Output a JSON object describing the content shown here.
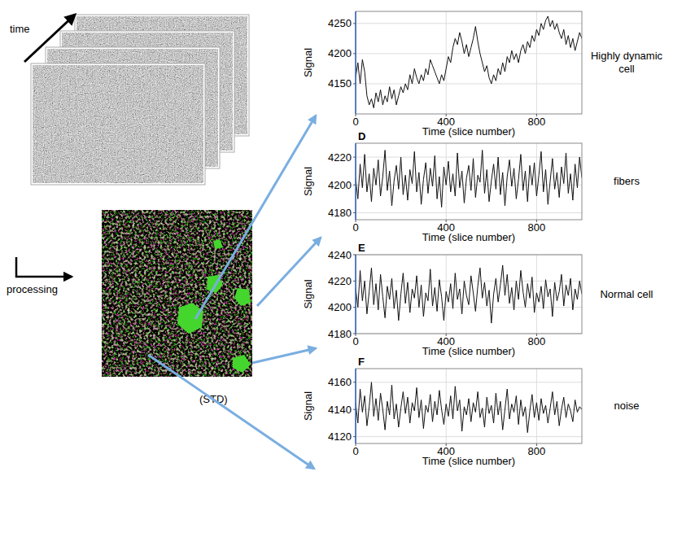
{
  "figure": {
    "time_label": "time",
    "processing_label": "processing",
    "std_label": "(STD)"
  },
  "chart_data": [
    {
      "type": "line",
      "annotation": "Highly dynamic cell",
      "x_label": "Time (slice number)",
      "y_label": "Signal",
      "xlim": [
        0,
        1000
      ],
      "ylim": [
        4100,
        4270
      ],
      "xticks": [
        0,
        400,
        800
      ],
      "yticks": [
        4150,
        4200,
        4250
      ],
      "grid": true,
      "color": "#111111",
      "x": [
        0,
        10,
        20,
        30,
        40,
        50,
        60,
        70,
        80,
        90,
        100,
        110,
        120,
        130,
        140,
        150,
        160,
        170,
        180,
        190,
        200,
        210,
        220,
        230,
        240,
        250,
        260,
        270,
        280,
        290,
        300,
        310,
        320,
        330,
        340,
        350,
        360,
        370,
        380,
        390,
        400,
        410,
        420,
        430,
        440,
        450,
        460,
        470,
        480,
        490,
        500,
        510,
        520,
        530,
        540,
        550,
        560,
        570,
        580,
        590,
        600,
        610,
        620,
        630,
        640,
        650,
        660,
        670,
        680,
        690,
        700,
        710,
        720,
        730,
        740,
        750,
        760,
        770,
        780,
        790,
        800,
        810,
        820,
        830,
        840,
        850,
        860,
        870,
        880,
        890,
        900,
        910,
        920,
        930,
        940,
        950,
        960,
        970,
        980,
        990,
        1000
      ],
      "values": [
        4160,
        4185,
        4150,
        4190,
        4170,
        4130,
        4115,
        4125,
        4110,
        4135,
        4120,
        4140,
        4115,
        4130,
        4120,
        4145,
        4125,
        4140,
        4115,
        4130,
        4145,
        4135,
        4150,
        4140,
        4165,
        4150,
        4175,
        4160,
        4150,
        4165,
        4155,
        4175,
        4165,
        4190,
        4180,
        4170,
        4160,
        4150,
        4165,
        4155,
        4175,
        4195,
        4185,
        4210,
        4225,
        4215,
        4235,
        4220,
        4200,
        4215,
        4195,
        4210,
        4225,
        4245,
        4220,
        4200,
        4185,
        4170,
        4180,
        4160,
        4150,
        4165,
        4155,
        4175,
        4165,
        4185,
        4170,
        4195,
        4185,
        4205,
        4190,
        4200,
        4185,
        4205,
        4215,
        4200,
        4220,
        4210,
        4230,
        4220,
        4240,
        4230,
        4250,
        4240,
        4255,
        4262,
        4245,
        4255,
        4240,
        4250,
        4235,
        4225,
        4240,
        4215,
        4230,
        4210,
        4225,
        4205,
        4220,
        4235,
        4225
      ]
    },
    {
      "type": "line",
      "panel_label": "D",
      "annotation": "fibers",
      "x_label": "Time (slice number)",
      "y_label": "Signal",
      "xlim": [
        0,
        1000
      ],
      "ylim": [
        4175,
        4230
      ],
      "xticks": [
        0,
        400,
        800
      ],
      "yticks": [
        4180,
        4200,
        4220
      ],
      "grid": true,
      "color": "#111111",
      "x": [
        0,
        10,
        20,
        30,
        40,
        50,
        60,
        70,
        80,
        90,
        100,
        110,
        120,
        130,
        140,
        150,
        160,
        170,
        180,
        190,
        200,
        210,
        220,
        230,
        240,
        250,
        260,
        270,
        280,
        290,
        300,
        310,
        320,
        330,
        340,
        350,
        360,
        370,
        380,
        390,
        400,
        410,
        420,
        430,
        440,
        450,
        460,
        470,
        480,
        490,
        500,
        510,
        520,
        530,
        540,
        550,
        560,
        570,
        580,
        590,
        600,
        610,
        620,
        630,
        640,
        650,
        660,
        670,
        680,
        690,
        700,
        710,
        720,
        730,
        740,
        750,
        760,
        770,
        780,
        790,
        800,
        810,
        820,
        830,
        840,
        850,
        860,
        870,
        880,
        890,
        900,
        910,
        920,
        930,
        940,
        950,
        960,
        970,
        980,
        990,
        1000
      ],
      "values": [
        4205,
        4190,
        4215,
        4198,
        4222,
        4195,
        4208,
        4188,
        4212,
        4200,
        4218,
        4192,
        4206,
        4225,
        4196,
        4210,
        4185,
        4203,
        4214,
        4197,
        4220,
        4193,
        4207,
        4189,
        4211,
        4201,
        4224,
        4195,
        4209,
        4186,
        4204,
        4216,
        4194,
        4212,
        4199,
        4221,
        4190,
        4206,
        4184,
        4213,
        4200,
        4217,
        4195,
        4208,
        4192,
        4223,
        4198,
        4210,
        4187,
        4205,
        4214,
        4196,
        4219,
        4191,
        4207,
        4202,
        4225,
        4194,
        4211,
        4188,
        4203,
        4215,
        4197,
        4220,
        4193,
        4209,
        4185,
        4206,
        4218,
        4199,
        4212,
        4190,
        4204,
        4222,
        4196,
        4210,
        4188,
        4214,
        4200,
        4216,
        4192,
        4207,
        4224,
        4195,
        4211,
        4186,
        4203,
        4219,
        4197,
        4209,
        4191,
        4213,
        4201,
        4223,
        4194,
        4208,
        4189,
        4215,
        4198,
        4220,
        4205
      ]
    },
    {
      "type": "line",
      "panel_label": "E",
      "annotation": "Normal cell",
      "x_label": "Time (slice number)",
      "y_label": "Signal",
      "xlim": [
        0,
        1000
      ],
      "ylim": [
        4180,
        4240
      ],
      "xticks": [
        0,
        400,
        800
      ],
      "yticks": [
        4180,
        4200,
        4220,
        4240
      ],
      "grid": true,
      "color": "#111111",
      "x": [
        0,
        10,
        20,
        30,
        40,
        50,
        60,
        70,
        80,
        90,
        100,
        110,
        120,
        130,
        140,
        150,
        160,
        170,
        180,
        190,
        200,
        210,
        220,
        230,
        240,
        250,
        260,
        270,
        280,
        290,
        300,
        310,
        320,
        330,
        340,
        350,
        360,
        370,
        380,
        390,
        400,
        410,
        420,
        430,
        440,
        450,
        460,
        470,
        480,
        490,
        500,
        510,
        520,
        530,
        540,
        550,
        560,
        570,
        580,
        590,
        600,
        610,
        620,
        630,
        640,
        650,
        660,
        670,
        680,
        690,
        700,
        710,
        720,
        730,
        740,
        750,
        760,
        770,
        780,
        790,
        800,
        810,
        820,
        830,
        840,
        850,
        860,
        870,
        880,
        890,
        900,
        910,
        920,
        930,
        940,
        950,
        960,
        970,
        980,
        990,
        1000
      ],
      "values": [
        4215,
        4200,
        4228,
        4205,
        4220,
        4195,
        4212,
        4230,
        4202,
        4218,
        4198,
        4225,
        4208,
        4192,
        4216,
        4206,
        4222,
        4199,
        4213,
        4190,
        4210,
        4226,
        4203,
        4219,
        4196,
        4214,
        4207,
        4224,
        4200,
        4217,
        4193,
        4211,
        4205,
        4229,
        4201,
        4215,
        4197,
        4221,
        4208,
        4190,
        4212,
        4204,
        4218,
        4199,
        4226,
        4206,
        4214,
        4195,
        4220,
        4209,
        4202,
        4224,
        4211,
        4197,
        4216,
        4230,
        4207,
        4219,
        4201,
        4213,
        4188,
        4210,
        4222,
        4204,
        4217,
        4232,
        4209,
        4225,
        4203,
        4215,
        4198,
        4220,
        4206,
        4228,
        4212,
        4200,
        4218,
        4207,
        4223,
        4196,
        4211,
        4204,
        4216,
        4199,
        4221,
        4208,
        4214,
        4193,
        4219,
        4205,
        4212,
        4225,
        4201,
        4217,
        4209,
        4222,
        4198,
        4214,
        4206,
        4220,
        4210
      ]
    },
    {
      "type": "line",
      "panel_label": "F",
      "annotation": "noise",
      "x_label": "Time (slice number)",
      "y_label": "Signal",
      "xlim": [
        0,
        1000
      ],
      "ylim": [
        4115,
        4170
      ],
      "xticks": [
        0,
        400,
        800
      ],
      "yticks": [
        4120,
        4140,
        4160
      ],
      "grid": true,
      "color": "#111111",
      "x": [
        0,
        10,
        20,
        30,
        40,
        50,
        60,
        70,
        80,
        90,
        100,
        110,
        120,
        130,
        140,
        150,
        160,
        170,
        180,
        190,
        200,
        210,
        220,
        230,
        240,
        250,
        260,
        270,
        280,
        290,
        300,
        310,
        320,
        330,
        340,
        350,
        360,
        370,
        380,
        390,
        400,
        410,
        420,
        430,
        440,
        450,
        460,
        470,
        480,
        490,
        500,
        510,
        520,
        530,
        540,
        550,
        560,
        570,
        580,
        590,
        600,
        610,
        620,
        630,
        640,
        650,
        660,
        670,
        680,
        690,
        700,
        710,
        720,
        730,
        740,
        750,
        760,
        770,
        780,
        790,
        800,
        810,
        820,
        830,
        840,
        850,
        860,
        870,
        880,
        890,
        900,
        910,
        920,
        930,
        940,
        950,
        960,
        970,
        980,
        990,
        1000
      ],
      "values": [
        4145,
        4130,
        4155,
        4138,
        4150,
        4128,
        4142,
        4160,
        4135,
        4148,
        4132,
        4152,
        4140,
        4125,
        4146,
        4136,
        4158,
        4133,
        4144,
        4127,
        4141,
        4153,
        4137,
        4149,
        4130,
        4145,
        4139,
        4156,
        4134,
        4147,
        4126,
        4143,
        4138,
        4151,
        4131,
        4146,
        4136,
        4154,
        4140,
        4129,
        4144,
        4135,
        4150,
        4133,
        4157,
        4139,
        4147,
        4124,
        4142,
        4136,
        4148,
        4131,
        4145,
        4138,
        4153,
        4134,
        4141,
        4127,
        4149,
        4137,
        4143,
        4130,
        4152,
        4136,
        4146,
        4125,
        4140,
        4155,
        4133,
        4144,
        4138,
        4150,
        4129,
        4147,
        4135,
        4142,
        4123,
        4139,
        4151,
        4134,
        4145,
        4132,
        4148,
        4137,
        4143,
        4130,
        4141,
        4153,
        4136,
        4146,
        4128,
        4140,
        4149,
        4134,
        4144,
        4139,
        4131,
        4147,
        4138,
        4142,
        4140
      ]
    }
  ]
}
